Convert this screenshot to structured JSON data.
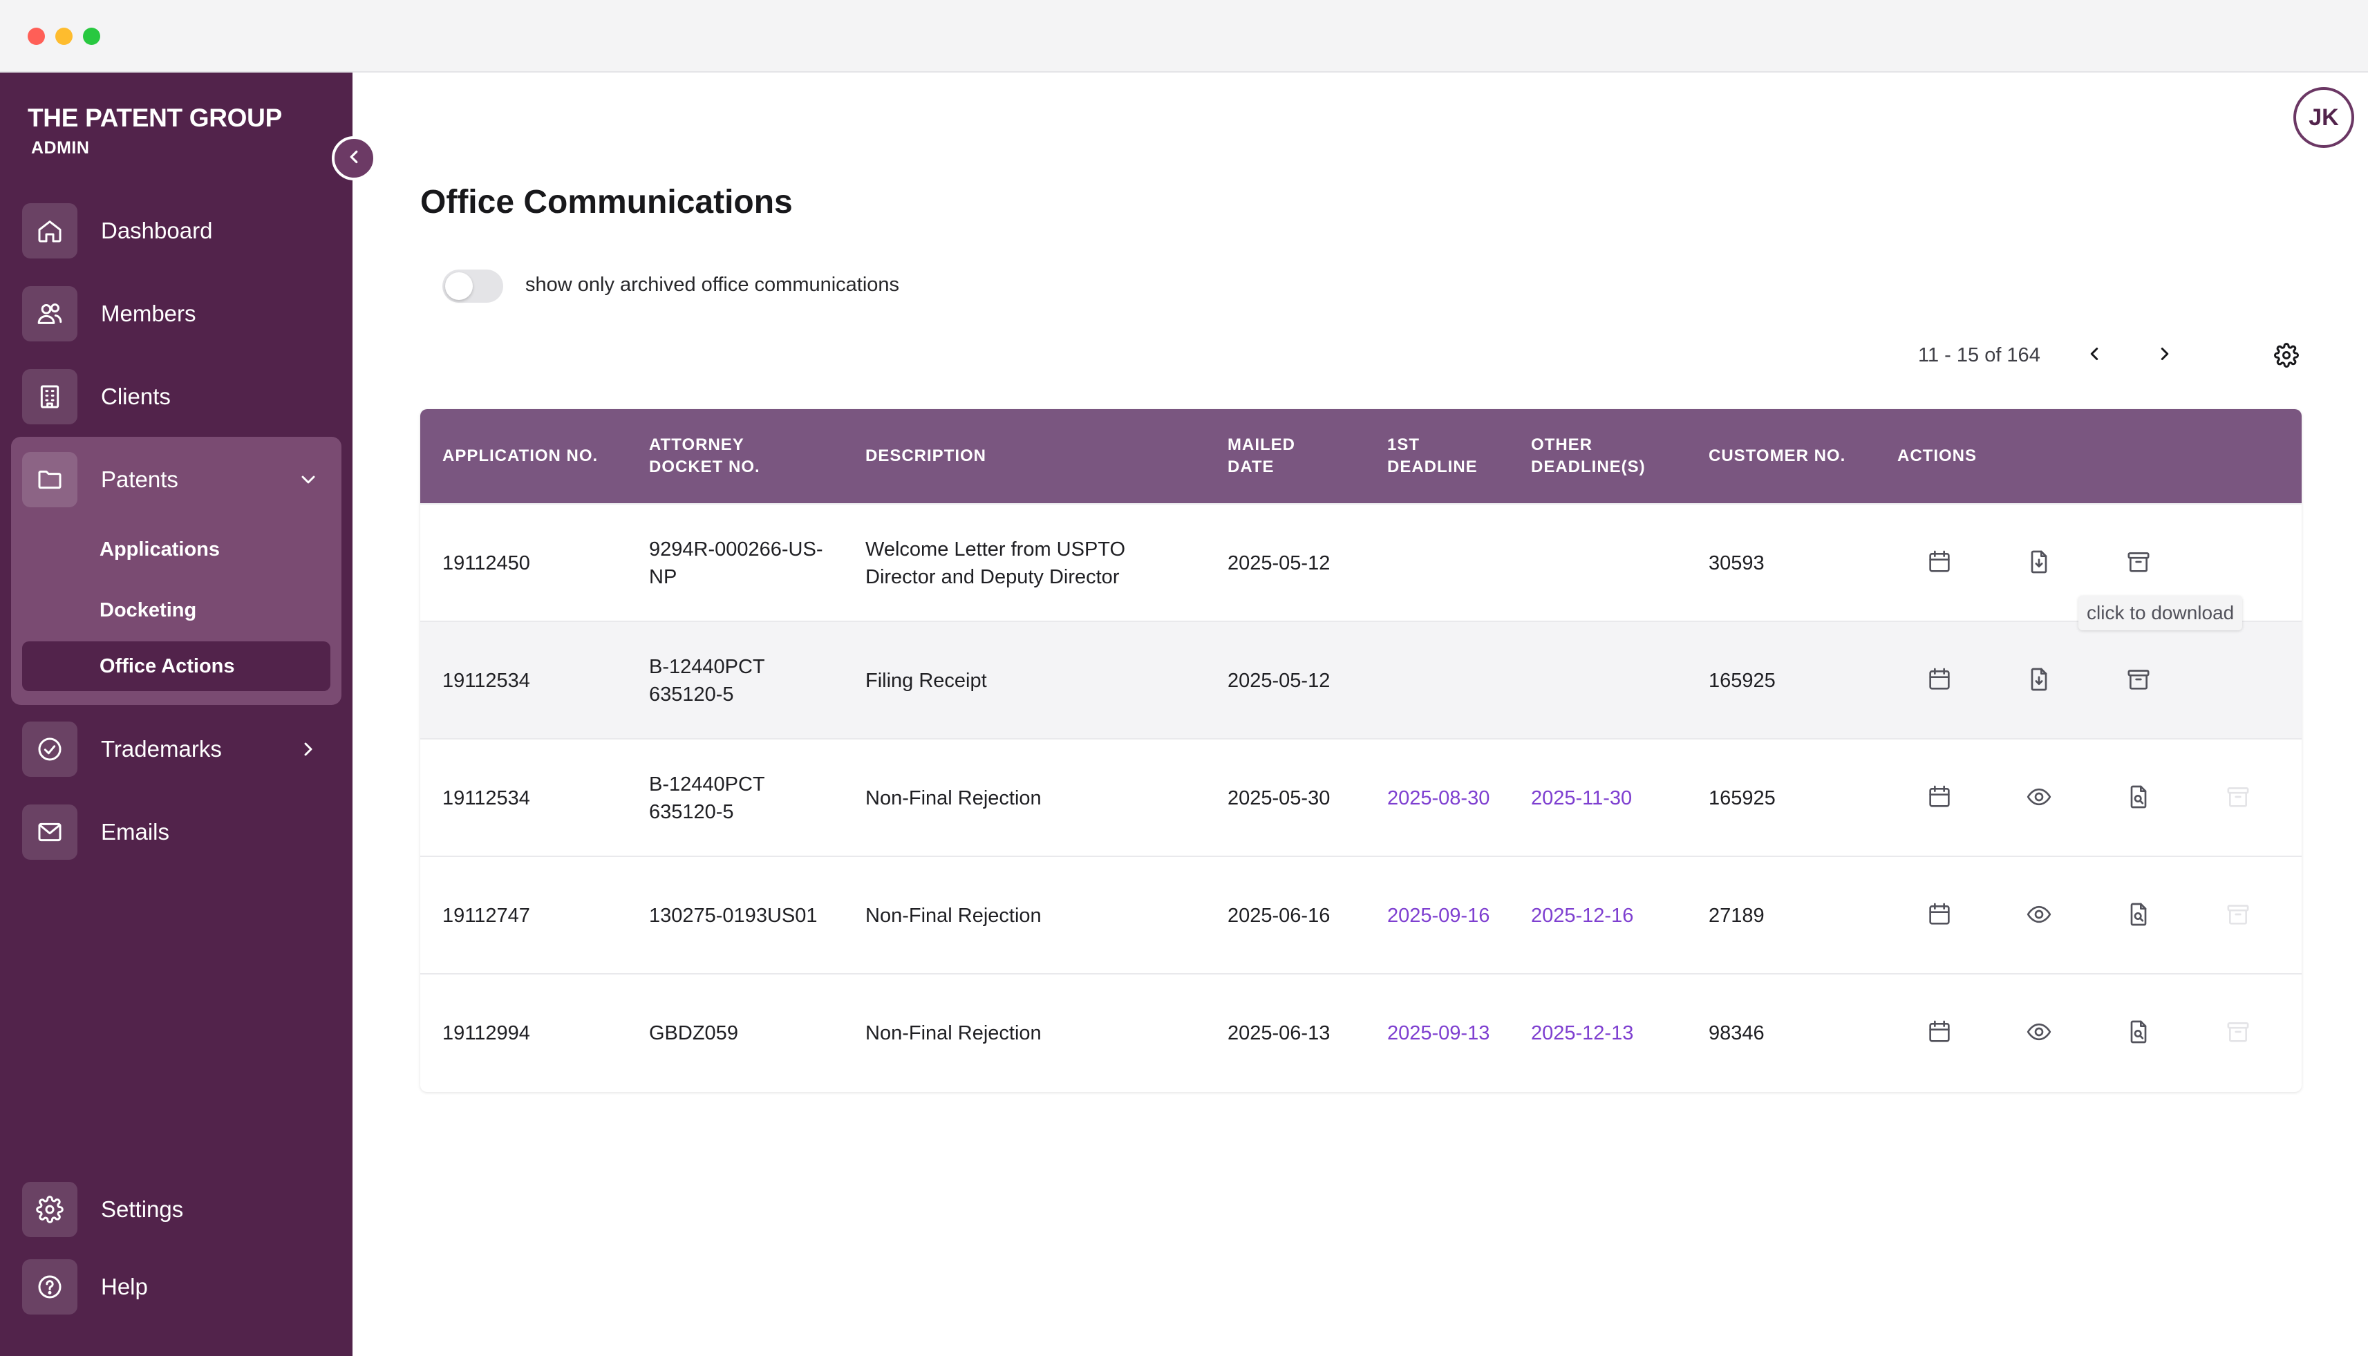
{
  "window": {
    "controls": [
      "close",
      "minimize",
      "maximize"
    ]
  },
  "sidebar": {
    "brand": "THE PATENT GROUP",
    "role": "ADMIN",
    "items": [
      {
        "label": "Dashboard",
        "icon": "home-icon"
      },
      {
        "label": "Members",
        "icon": "users-icon"
      },
      {
        "label": "Clients",
        "icon": "building-icon"
      },
      {
        "label": "Patents",
        "icon": "folder-icon",
        "expanded": true
      },
      {
        "label": "Trademarks",
        "icon": "check-badge-icon"
      },
      {
        "label": "Emails",
        "icon": "mail-icon"
      }
    ],
    "patents_sub": [
      {
        "label": "Applications"
      },
      {
        "label": "Docketing"
      },
      {
        "label": "Office Actions",
        "active": true
      }
    ],
    "bottom": [
      {
        "label": "Settings",
        "icon": "gear-icon"
      },
      {
        "label": "Help",
        "icon": "help-icon"
      }
    ]
  },
  "header": {
    "avatar_initials": "JK"
  },
  "main": {
    "title": "Office Communications",
    "archived_toggle": {
      "label": "show only archived office communications",
      "on": false
    },
    "pagination": {
      "text": "11 - 15 of 164"
    },
    "table": {
      "columns": [
        "APPLICATION NO.",
        "ATTORNEY DOCKET NO.",
        "DESCRIPTION",
        "MAILED DATE",
        "1ST DEADLINE",
        "OTHER DEADLINE(S)",
        "CUSTOMER NO.",
        "ACTIONS"
      ],
      "rows": [
        {
          "application_no": "19112450",
          "docket_no": "9294R-000266-US-NP",
          "description": "Welcome Letter from USPTO Director and Deputy Director",
          "mailed_date": "2025-05-12",
          "first_deadline": "",
          "other_deadlines": "",
          "customer_no": "30593",
          "actions": [
            "calendar-icon",
            "file-download-icon",
            "archive-icon"
          ]
        },
        {
          "application_no": "19112534",
          "docket_no": "B-12440PCT 635120-5",
          "description": "Filing Receipt",
          "mailed_date": "2025-05-12",
          "first_deadline": "",
          "other_deadlines": "",
          "customer_no": "165925",
          "actions": [
            "calendar-icon",
            "file-download-icon",
            "archive-icon"
          ]
        },
        {
          "application_no": "19112534",
          "docket_no": "B-12440PCT 635120-5",
          "description": "Non-Final Rejection",
          "mailed_date": "2025-05-30",
          "first_deadline": "2025-08-30",
          "other_deadlines": "2025-11-30",
          "customer_no": "165925",
          "actions": [
            "calendar-icon",
            "eye-icon",
            "file-search-icon",
            "archive-icon"
          ]
        },
        {
          "application_no": "19112747",
          "docket_no": "130275-0193US01",
          "description": "Non-Final Rejection",
          "mailed_date": "2025-06-16",
          "first_deadline": "2025-09-16",
          "other_deadlines": "2025-12-16",
          "customer_no": "27189",
          "actions": [
            "calendar-icon",
            "eye-icon",
            "file-search-icon",
            "archive-icon"
          ]
        },
        {
          "application_no": "19112994",
          "docket_no": "GBDZ059",
          "description": "Non-Final Rejection",
          "mailed_date": "2025-06-13",
          "first_deadline": "2025-09-13",
          "other_deadlines": "2025-12-13",
          "customer_no": "98346",
          "actions": [
            "calendar-icon",
            "eye-icon",
            "file-search-icon",
            "archive-icon"
          ]
        }
      ]
    },
    "tooltip": "click to download"
  },
  "colors": {
    "sidebar_bg": "#52234b",
    "sidebar_group_bg": "#7a4b72",
    "table_header_bg": "#7a5680",
    "deadline_link": "#7e3fd0"
  }
}
